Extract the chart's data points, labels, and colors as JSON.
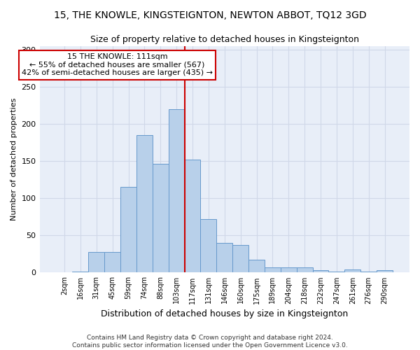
{
  "title1": "15, THE KNOWLE, KINGSTEIGNTON, NEWTON ABBOT, TQ12 3GD",
  "title2": "Size of property relative to detached houses in Kingsteignton",
  "xlabel": "Distribution of detached houses by size in Kingsteignton",
  "ylabel": "Number of detached properties",
  "footnote1": "Contains HM Land Registry data © Crown copyright and database right 2024.",
  "footnote2": "Contains public sector information licensed under the Open Government Licence v3.0.",
  "annotation_line1": "15 THE KNOWLE: 111sqm",
  "annotation_line2": "← 55% of detached houses are smaller (567)",
  "annotation_line3": "42% of semi-detached houses are larger (435) →",
  "bar_labels": [
    "2sqm",
    "16sqm",
    "31sqm",
    "45sqm",
    "59sqm",
    "74sqm",
    "88sqm",
    "103sqm",
    "117sqm",
    "131sqm",
    "146sqm",
    "160sqm",
    "175sqm",
    "189sqm",
    "204sqm",
    "218sqm",
    "232sqm",
    "247sqm",
    "261sqm",
    "276sqm",
    "290sqm"
  ],
  "bar_heights": [
    0,
    1,
    28,
    28,
    115,
    185,
    146,
    220,
    152,
    72,
    40,
    37,
    17,
    7,
    7,
    7,
    3,
    1,
    4,
    1,
    3
  ],
  "bar_color": "#b8d0ea",
  "bar_edge_color": "#6699cc",
  "bar_width": 1.0,
  "vline_x_index": 7,
  "vline_color": "#cc0000",
  "annotation_box_facecolor": "#ffffff",
  "annotation_box_edgecolor": "#cc0000",
  "grid_color": "#d0d8e8",
  "ylim": [
    0,
    305
  ],
  "yticks": [
    0,
    50,
    100,
    150,
    200,
    250,
    300
  ],
  "bg_color": "#e8eef8",
  "title1_fontsize": 10,
  "title2_fontsize": 9,
  "xlabel_fontsize": 9,
  "ylabel_fontsize": 8,
  "annotation_fontsize": 8,
  "footnote_fontsize": 6.5
}
